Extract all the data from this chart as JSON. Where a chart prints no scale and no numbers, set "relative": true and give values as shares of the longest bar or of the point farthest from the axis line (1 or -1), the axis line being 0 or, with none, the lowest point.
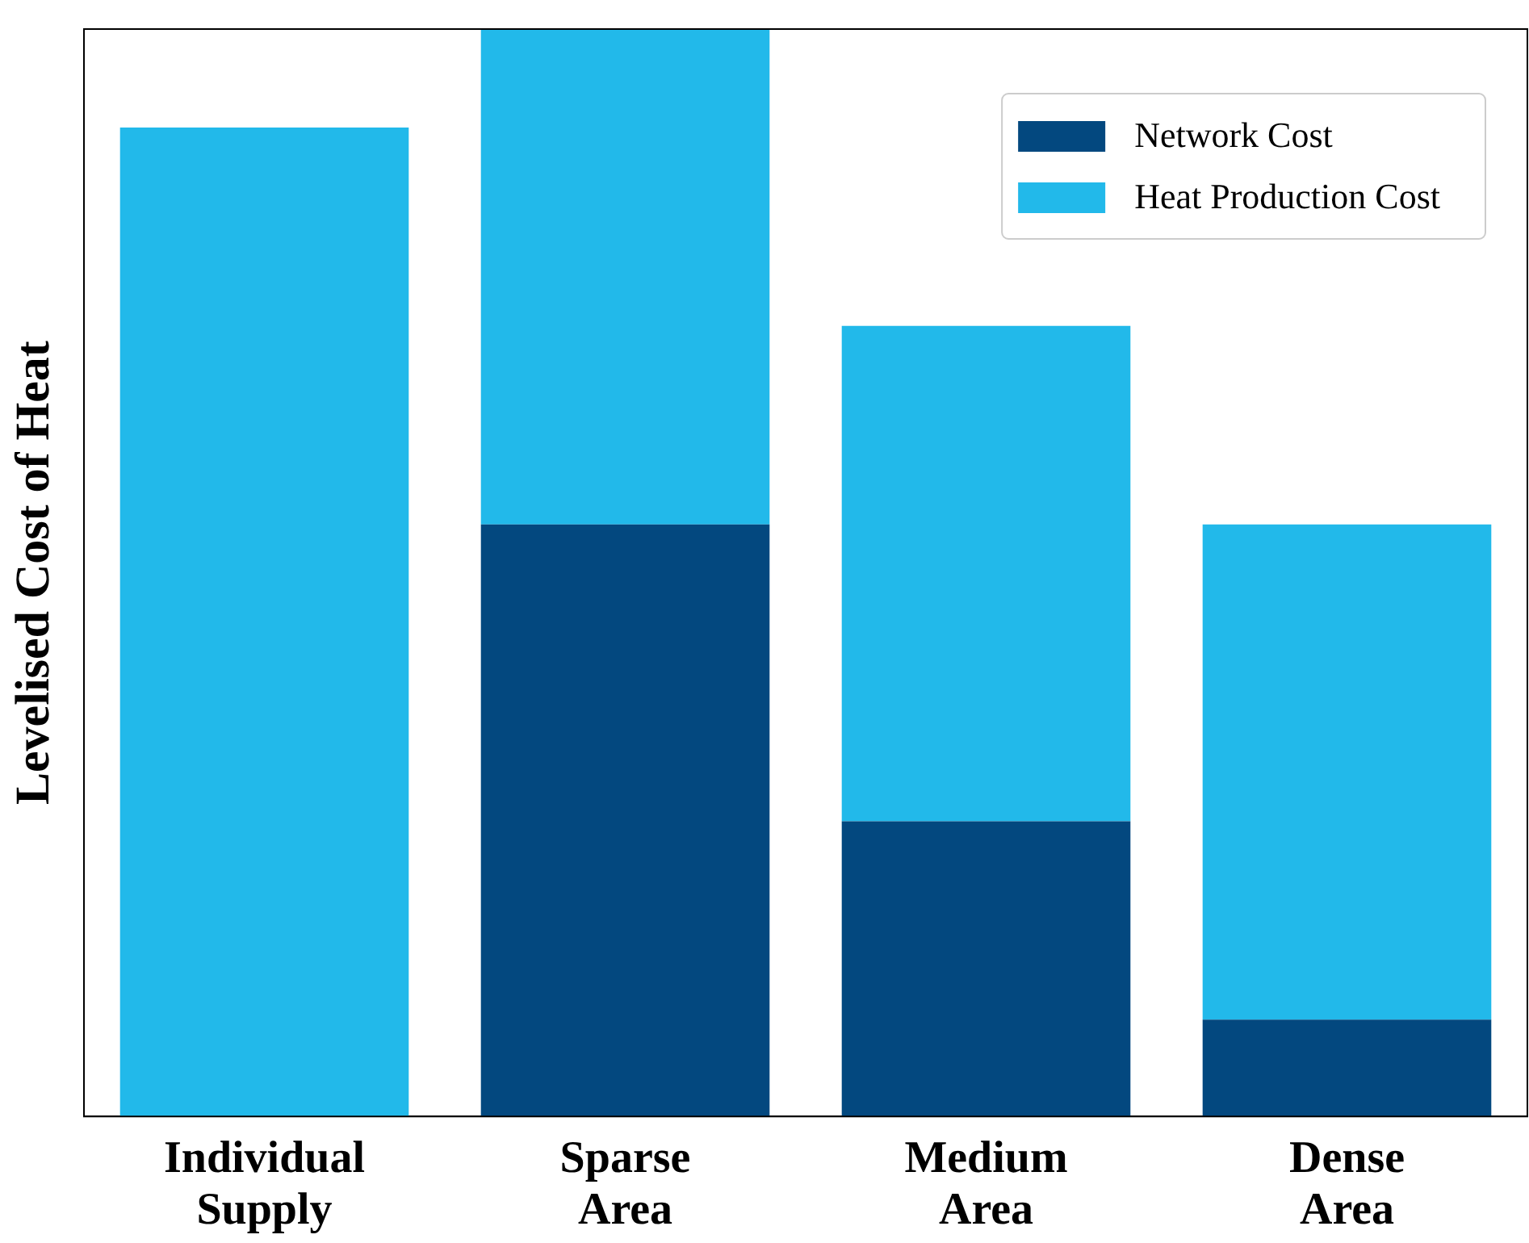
{
  "chart_data": {
    "type": "bar",
    "stacked": true,
    "relative": true,
    "ylabel": "Levelised Cost of Heat",
    "categories": [
      "Individual Supply",
      "Sparse Area",
      "Medium Area",
      "Dense Area"
    ],
    "legend": "top right",
    "grid": false,
    "series": [
      {
        "name": "Network Cost",
        "color": "#03487f",
        "values": [
          0,
          0.5445,
          0.2715,
          0.089
        ]
      },
      {
        "name": "Heat Production Cost",
        "color": "#22b9ea",
        "values": [
          0.9095,
          0.4555,
          0.4555,
          0.4555
        ]
      }
    ]
  }
}
